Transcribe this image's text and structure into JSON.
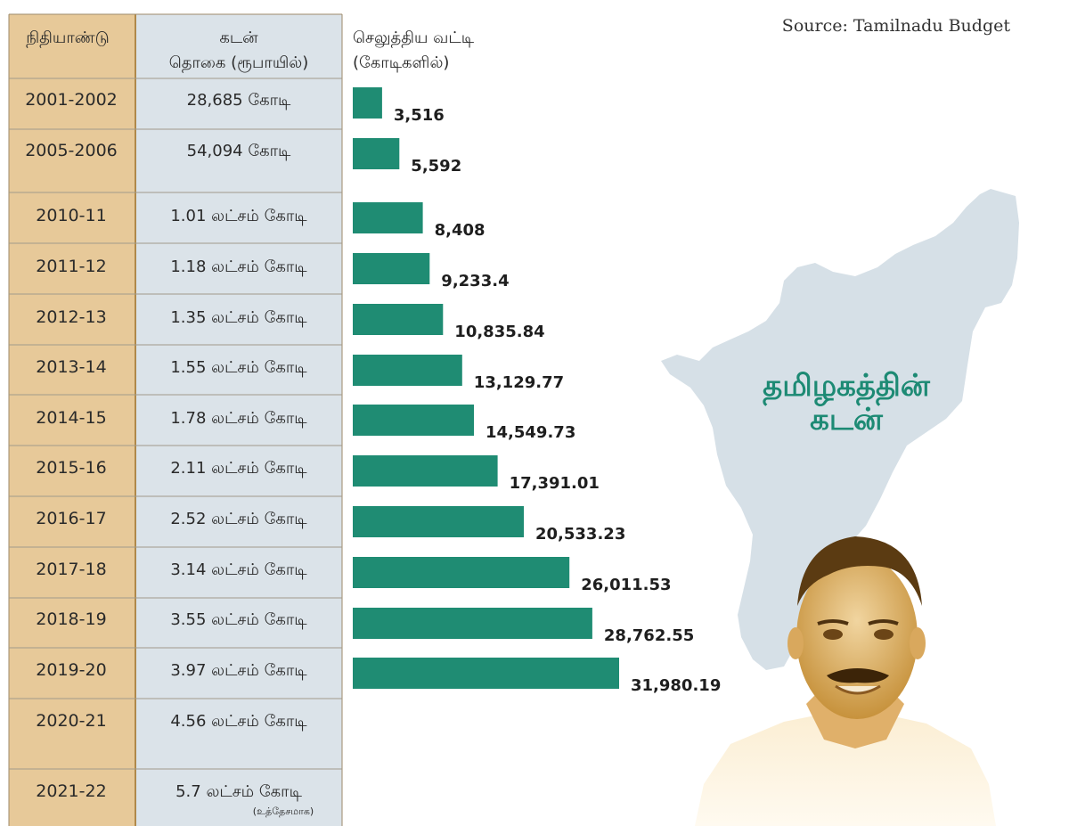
{
  "source": "Source: Tamilnadu Budget",
  "title_lines": [
    "தமிழகத்தின்",
    "கடன்"
  ],
  "table": {
    "headers": {
      "year": "நிதியாண்டு",
      "amount_line1": "கடன்",
      "amount_line2": "தொகை (ரூபாயில்)",
      "interest_line1": "செலுத்திய வட்டி",
      "interest_line2": "(கோடிகளில்)"
    },
    "rows": [
      {
        "year": "2001-2002",
        "amount": "28,685 கோடி"
      },
      {
        "year": "2005-2006",
        "amount": "54,094 கோடி"
      },
      {
        "year": "2010-11",
        "amount": "1.01 லட்சம் கோடி"
      },
      {
        "year": "2011-12",
        "amount": "1.18 லட்சம் கோடி"
      },
      {
        "year": "2012-13",
        "amount": "1.35 லட்சம் கோடி"
      },
      {
        "year": "2013-14",
        "amount": "1.55 லட்சம் கோடி"
      },
      {
        "year": "2014-15",
        "amount": "1.78 லட்சம் கோடி"
      },
      {
        "year": "2015-16",
        "amount": "2.11 லட்சம் கோடி"
      },
      {
        "year": "2016-17",
        "amount": "2.52 லட்சம் கோடி"
      },
      {
        "year": "2017-18",
        "amount": "3.14 லட்சம் கோடி"
      },
      {
        "year": "2018-19",
        "amount": "3.55 லட்சம் கோடி"
      },
      {
        "year": "2019-20",
        "amount": "3.97 லட்சம் கோடி"
      },
      {
        "year": "2020-21",
        "amount": "4.56 லட்சம் கோடி"
      },
      {
        "year": "2021-22",
        "amount": "5.7 லட்சம் கோடி",
        "note": "(உத்தேசமாக)"
      }
    ]
  },
  "chart_data": {
    "type": "bar",
    "orientation": "horizontal",
    "title": "",
    "xlabel": "",
    "ylabel": "",
    "categories": [
      "2001-2002",
      "2005-2006",
      "2010-11",
      "2011-12",
      "2012-13",
      "2013-14",
      "2014-15",
      "2015-16",
      "2016-17",
      "2017-18",
      "2018-19",
      "2019-20"
    ],
    "values": [
      3516,
      5592,
      8408,
      9233.4,
      10835.84,
      13129.77,
      14549.73,
      17391.01,
      20533.23,
      26011.53,
      28762.55,
      31980.19
    ],
    "value_labels": [
      "3,516",
      "5,592",
      "8,408",
      "9,233.4",
      "10,835.84",
      "13,129.77",
      "14,549.73",
      "17,391.01",
      "20,533.23",
      "26,011.53",
      "28,762.55",
      "31,980.19"
    ],
    "xlim": [
      0,
      32000
    ],
    "grid": false,
    "legend": "none",
    "bar_color": "#1f8c73"
  },
  "colors": {
    "year_col": "#e7c999",
    "amount_col": "#dbe3e9",
    "bar": "#1f8c73",
    "map": "#d6e0e7",
    "title": "#1d8a74",
    "border": "#a08a5c"
  },
  "images": {
    "map": "tamil-nadu-map",
    "portrait": "politician-portrait"
  }
}
